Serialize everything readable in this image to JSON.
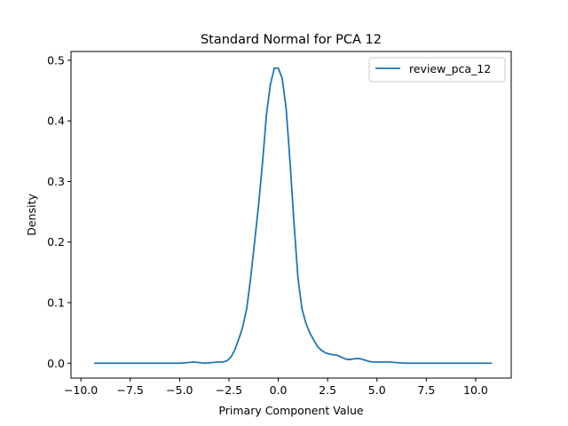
{
  "chart_data": {
    "type": "line",
    "title": "Standard Normal for PCA 12",
    "xlabel": "Primary Component Value",
    "ylabel": "Density",
    "xlim": [
      -10.5,
      11.8
    ],
    "ylim": [
      -0.0245,
      0.5145
    ],
    "xticks": [
      -10.0,
      -7.5,
      -5.0,
      -2.5,
      0.0,
      2.5,
      5.0,
      7.5,
      10.0
    ],
    "xtick_labels": [
      "−10.0",
      "−7.5",
      "−5.0",
      "−2.5",
      "0.0",
      "2.5",
      "5.0",
      "7.5",
      "10.0"
    ],
    "yticks": [
      0.0,
      0.1,
      0.2,
      0.3,
      0.4,
      0.5
    ],
    "ytick_labels": [
      "0.0",
      "0.1",
      "0.2",
      "0.3",
      "0.4",
      "0.5"
    ],
    "grid": false,
    "legend": {
      "position": "top-right",
      "entries": [
        "review_pca_12"
      ]
    },
    "series": [
      {
        "name": "review_pca_12",
        "color": "#1f77b4",
        "x": [
          -9.3,
          -8,
          -7,
          -6,
          -5,
          -4.6,
          -4.3,
          -4.0,
          -3.7,
          -3.4,
          -3.0,
          -2.8,
          -2.6,
          -2.4,
          -2.2,
          -2.0,
          -1.8,
          -1.6,
          -1.4,
          -1.2,
          -1.0,
          -0.8,
          -0.6,
          -0.4,
          -0.2,
          0.0,
          0.2,
          0.4,
          0.6,
          0.8,
          1.0,
          1.2,
          1.4,
          1.6,
          1.8,
          2.0,
          2.2,
          2.4,
          2.6,
          2.8,
          3.0,
          3.2,
          3.4,
          3.6,
          3.8,
          4.0,
          4.2,
          4.4,
          4.6,
          4.8,
          5.0,
          5.3,
          5.6,
          6.0,
          6.5,
          7.0,
          8.0,
          9.0,
          10.0,
          10.8
        ],
        "y": [
          0.0,
          0.0,
          0.0,
          0.0,
          0.0,
          0.001,
          0.002,
          0.001,
          0.0,
          0.001,
          0.002,
          0.002,
          0.004,
          0.01,
          0.022,
          0.04,
          0.06,
          0.09,
          0.14,
          0.2,
          0.26,
          0.33,
          0.41,
          0.46,
          0.487,
          0.487,
          0.47,
          0.42,
          0.33,
          0.23,
          0.14,
          0.09,
          0.066,
          0.05,
          0.038,
          0.027,
          0.021,
          0.017,
          0.015,
          0.014,
          0.013,
          0.01,
          0.007,
          0.006,
          0.007,
          0.008,
          0.007,
          0.005,
          0.003,
          0.002,
          0.002,
          0.002,
          0.002,
          0.001,
          0.0,
          0.0,
          0.0,
          0.0,
          0.0,
          0.0
        ]
      }
    ]
  }
}
